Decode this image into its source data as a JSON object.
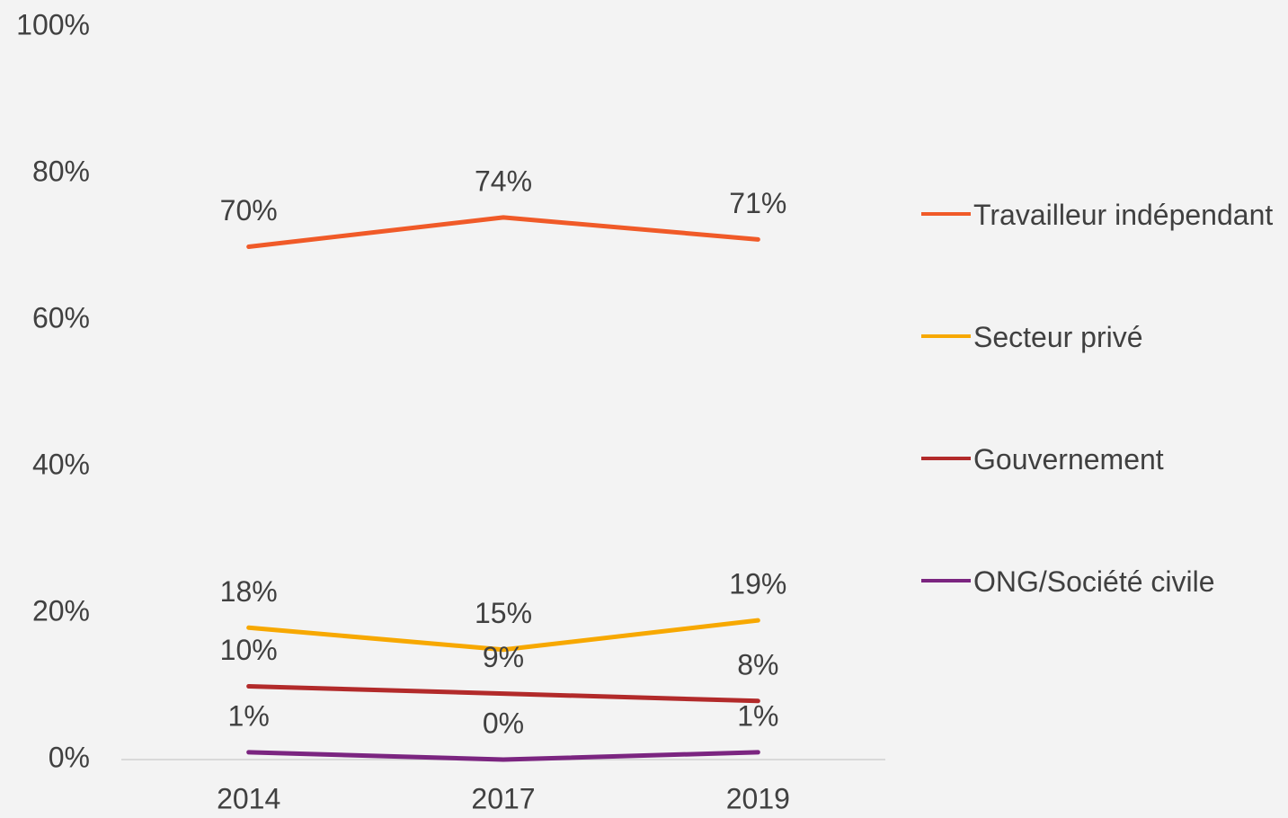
{
  "chart_data": {
    "type": "line",
    "categories": [
      "2014",
      "2017",
      "2019"
    ],
    "series": [
      {
        "name": "Travailleur indépendant",
        "color": "#f05a28",
        "values": [
          70,
          74,
          71
        ],
        "value_labels": [
          "70%",
          "74%",
          "71%"
        ]
      },
      {
        "name": "Secteur privé",
        "color": "#f7a800",
        "values": [
          18,
          15,
          19
        ],
        "value_labels": [
          "18%",
          "15%",
          "19%"
        ]
      },
      {
        "name": "Gouvernement",
        "color": "#b22a2a",
        "values": [
          10,
          9,
          8
        ],
        "value_labels": [
          "10%",
          "9%",
          "8%"
        ]
      },
      {
        "name": "ONG/Société civile",
        "color": "#7b2580",
        "values": [
          1,
          0,
          1
        ],
        "value_labels": [
          "1%",
          "0%",
          "1%"
        ]
      }
    ],
    "ylim": [
      0,
      100
    ],
    "yticks": [
      {
        "value": 0,
        "label": "0%"
      },
      {
        "value": 20,
        "label": "20%"
      },
      {
        "value": 40,
        "label": "40%"
      },
      {
        "value": 60,
        "label": "60%"
      },
      {
        "value": 80,
        "label": "80%"
      },
      {
        "value": 100,
        "label": "100%"
      }
    ],
    "legend": "right"
  }
}
